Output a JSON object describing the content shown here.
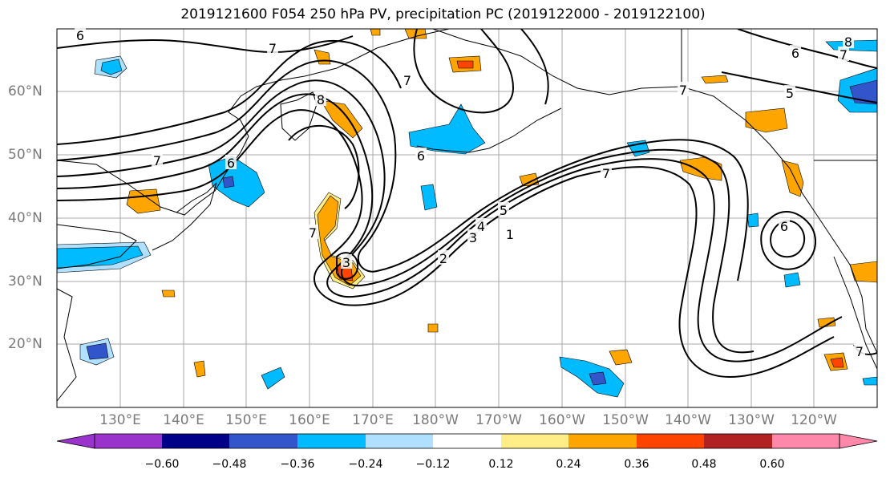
{
  "title": "2019121600 F054 250 hPa PV, precipitation PC (2019122000 - 2019122100)",
  "lat_labels": [
    "60°N",
    "50°N",
    "40°N",
    "30°N",
    "20°N"
  ],
  "lon_labels": [
    "130°E",
    "140°E",
    "150°E",
    "160°E",
    "170°E",
    "180°W",
    "170°W",
    "160°W",
    "150°W",
    "140°W",
    "130°W",
    "120°W"
  ],
  "contour_labels": [
    "6",
    "7",
    "7",
    "7",
    "7",
    "8",
    "6",
    "7",
    "5",
    "7",
    "6",
    "6",
    "7",
    "5",
    "4",
    "3",
    "2",
    "1",
    "6",
    "3",
    "7",
    "8"
  ],
  "colorbar": {
    "ticks": [
      "−0.60",
      "−0.48",
      "−0.36",
      "−0.24",
      "−0.12",
      "0.12",
      "0.24",
      "0.36",
      "0.48",
      "0.60"
    ],
    "colors": [
      "#9933cc",
      "#000088",
      "#3355cc",
      "#00bbff",
      "#b0e0ff",
      "#ffffff",
      "#ffee88",
      "#ffa500",
      "#ff4400",
      "#b22222",
      "#ff88aa"
    ]
  }
}
